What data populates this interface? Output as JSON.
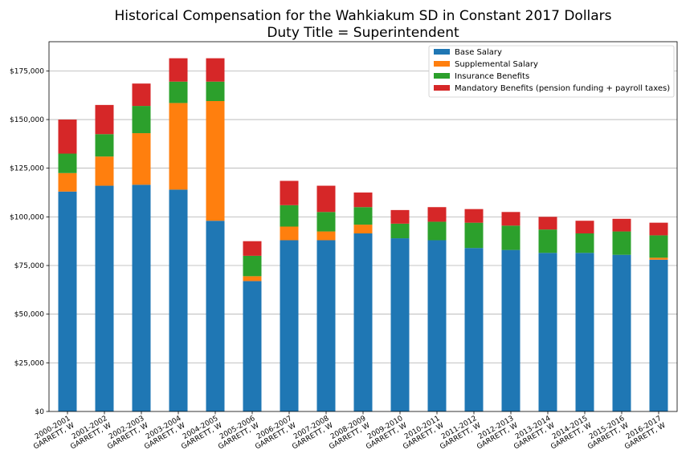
{
  "chart_data": {
    "type": "bar",
    "stacked": true,
    "title": "Historical Compensation for the Wahkiakum SD in Constant 2017 Dollars",
    "subtitle": "Duty Title = Superintendent",
    "xlabel": "",
    "ylabel": "",
    "ylim": [
      0,
      190000
    ],
    "yticks": [
      0,
      25000,
      50000,
      75000,
      100000,
      125000,
      150000,
      175000
    ],
    "ytick_labels": [
      "$0",
      "$25,000",
      "$50,000",
      "$75,000",
      "$100,000",
      "$125,000",
      "$150,000",
      "$175,000"
    ],
    "grid": "horizontal",
    "legend_position": "top-right",
    "categories": [
      [
        "2000-2001",
        "GARRETT, W"
      ],
      [
        "2001-2002",
        "GARRETT, W"
      ],
      [
        "2002-2003",
        "GARRETT, W"
      ],
      [
        "2003-2004",
        "GARRETT, W"
      ],
      [
        "2004-2005",
        "GARRETT, W"
      ],
      [
        "2005-2006",
        "GARRETT, W"
      ],
      [
        "2006-2007",
        "GARRETT, W"
      ],
      [
        "2007-2008",
        "GARRETT, W"
      ],
      [
        "2008-2009",
        "GARRETT, W"
      ],
      [
        "2009-2010",
        "GARRETT, W"
      ],
      [
        "2010-2011",
        "GARRETT, W"
      ],
      [
        "2011-2012",
        "GARRETT, W"
      ],
      [
        "2012-2013",
        "GARRETT, W"
      ],
      [
        "2013-2014",
        "GARRETT, W"
      ],
      [
        "2014-2015",
        "GARRETT, W"
      ],
      [
        "2015-2016",
        "GARRETT, W"
      ],
      [
        "2016-2017",
        "GARRETT, W"
      ]
    ],
    "series": [
      {
        "name": "Base Salary",
        "color": "#1f77b4",
        "values": [
          113000,
          116000,
          116500,
          114000,
          98000,
          67000,
          88000,
          88000,
          91500,
          89000,
          88000,
          84000,
          83000,
          81500,
          81500,
          80500,
          78000
        ]
      },
      {
        "name": "Supplemental Salary",
        "color": "#ff7f0e",
        "values": [
          9500,
          15000,
          26500,
          44500,
          61500,
          2500,
          7000,
          4500,
          4500,
          0,
          0,
          0,
          0,
          0,
          0,
          0,
          1000
        ]
      },
      {
        "name": "Insurance Benefits",
        "color": "#2ca02c",
        "values": [
          10000,
          11500,
          14000,
          11000,
          10000,
          10500,
          11000,
          10000,
          9000,
          7500,
          9500,
          13000,
          12500,
          12000,
          10000,
          12000,
          11500
        ]
      },
      {
        "name": "Mandatory Benefits (pension funding + payroll taxes)",
        "color": "#d62728",
        "values": [
          17500,
          15000,
          11500,
          12000,
          12000,
          7500,
          12500,
          13500,
          7500,
          7000,
          7500,
          7000,
          7000,
          6500,
          6500,
          6500,
          6500
        ]
      }
    ]
  }
}
